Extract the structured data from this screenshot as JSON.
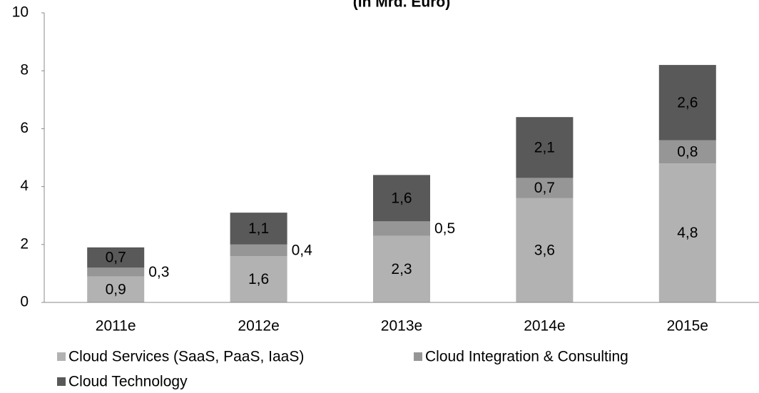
{
  "chart_data": {
    "type": "stacked_bar",
    "title": "(in Mrd. Euro)",
    "categories": [
      "2011e",
      "2012e",
      "2013e",
      "2014e",
      "2015e"
    ],
    "series": [
      {
        "name": "Cloud Services (SaaS, PaaS, IaaS)",
        "color": "#b2b2b2",
        "values": [
          0.9,
          1.6,
          2.3,
          3.6,
          4.8
        ],
        "value_labels": [
          "0,9",
          "1,6",
          "2,3",
          "3,6",
          "4,8"
        ]
      },
      {
        "name": "Cloud Integration & Consulting",
        "color": "#969696",
        "values": [
          0.3,
          0.4,
          0.5,
          0.7,
          0.8
        ],
        "value_labels": [
          "0,3",
          "0,4",
          "0,5",
          "0,7",
          "0,8"
        ]
      },
      {
        "name": "Cloud Technology",
        "color": "#595959",
        "values": [
          0.7,
          1.1,
          1.6,
          2.1,
          2.6
        ],
        "value_labels": [
          "0,7",
          "1,1",
          "1,6",
          "2,1",
          "2,6"
        ]
      }
    ],
    "ylim": [
      0,
      10
    ],
    "yticks": [
      0,
      2,
      4,
      6,
      8,
      10
    ],
    "legend": "bottom"
  }
}
